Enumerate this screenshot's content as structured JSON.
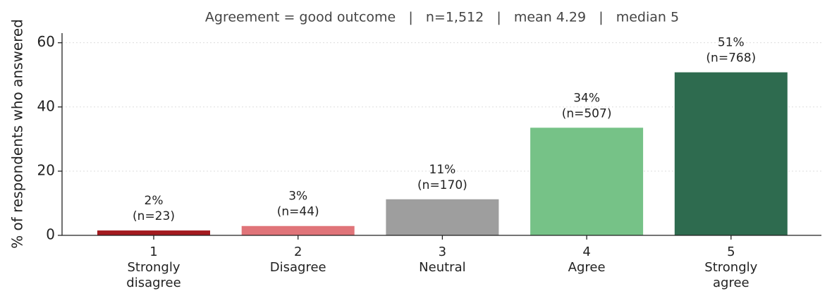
{
  "chart_data": {
    "type": "bar",
    "title": "Agreement = good outcome   |   n=1,512   |   mean 4.29   |   median 5",
    "y_label": "% of respondents who answered",
    "categories": [
      "1\nStrongly\ndisagree",
      "2\nDisagree",
      "3\nNeutral",
      "4\nAgree",
      "5\nStrongly\nagree"
    ],
    "values": [
      1.52,
      2.91,
      11.24,
      33.53,
      50.79
    ],
    "value_labels": [
      "2%",
      "3%",
      "11%",
      "34%",
      "51%"
    ],
    "count_labels": [
      "(n=23)",
      "(n=44)",
      "(n=170)",
      "(n=507)",
      "(n=768)"
    ],
    "colors": [
      "#a31a1f",
      "#e07479",
      "#9e9e9e",
      "#76c287",
      "#2e6b4f"
    ],
    "ylim": [
      0,
      63
    ],
    "yticks": [
      0,
      20,
      40,
      60
    ],
    "grid": true
  }
}
